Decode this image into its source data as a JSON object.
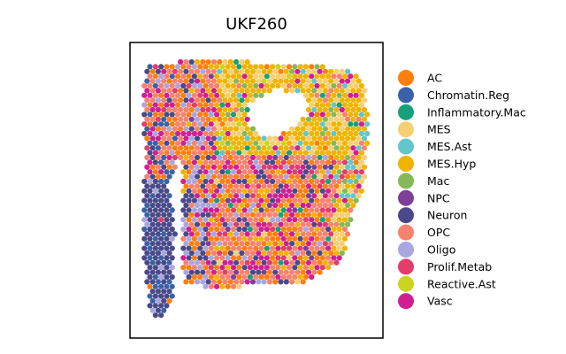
{
  "chart_data": {
    "type": "scatter",
    "title": "UKF260",
    "xlabel": "",
    "ylabel": "",
    "grid": false,
    "axes_ticks": false,
    "legend_placement": "right",
    "series": [
      {
        "name": "AC",
        "color": "#ff7f0e"
      },
      {
        "name": "Chromatin.Reg",
        "color": "#3a62a8"
      },
      {
        "name": "Inflammatory.Mac",
        "color": "#17a07a"
      },
      {
        "name": "MES",
        "color": "#f5cf72"
      },
      {
        "name": "MES.Ast",
        "color": "#62c6cb"
      },
      {
        "name": "MES.Hyp",
        "color": "#f0b400"
      },
      {
        "name": "Mac",
        "color": "#86b85a"
      },
      {
        "name": "NPC",
        "color": "#7f3f98"
      },
      {
        "name": "Neuron",
        "color": "#4a4a8a"
      },
      {
        "name": "OPC",
        "color": "#f7826e"
      },
      {
        "name": "Oligo",
        "color": "#a9a6e0"
      },
      {
        "name": "Prolif.Metab",
        "color": "#e23d6b"
      },
      {
        "name": "Reactive.Ast",
        "color": "#cbd41e"
      },
      {
        "name": "Vasc",
        "color": "#d11f93"
      }
    ]
  }
}
